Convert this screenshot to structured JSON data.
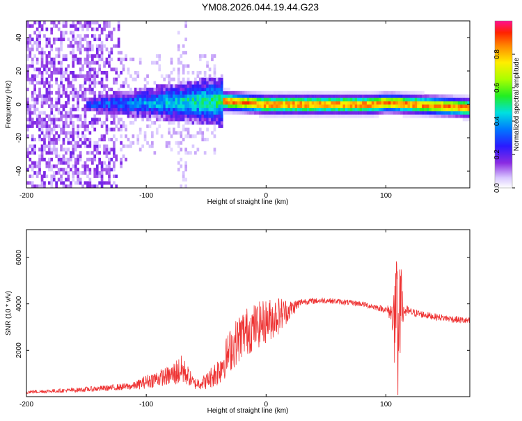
{
  "title": "YM08.2026.044.19.44.G23",
  "chart_data": [
    {
      "type": "heatmap",
      "xlabel": "Height of straight line (km)",
      "ylabel": "Frequency (Hz)",
      "xlim": [
        -200,
        170
      ],
      "ylim": [
        -50,
        50
      ],
      "xticks": [
        -200,
        -100,
        0,
        100
      ],
      "xtick_labels": [
        "-200",
        "-100",
        "0",
        "100"
      ],
      "yticks": [
        -40,
        -20,
        0,
        20,
        40
      ],
      "ytick_labels": [
        "-40",
        "-20",
        "0",
        "20",
        "40"
      ],
      "colorbar": {
        "label": "Normalized spectral amplitude",
        "range": [
          0,
          1
        ],
        "ticks": [
          0.0,
          0.2,
          0.4,
          0.6,
          0.8
        ],
        "tick_labels": [
          "0.0",
          "0.2",
          "0.4",
          "0.6",
          "0.8"
        ]
      },
      "features": {
        "noise_region_km": [
          -200,
          -115
        ],
        "faint_column_km": [
          -75,
          -65
        ],
        "band_start_km": -150,
        "strong_band_start_km": -35,
        "band_center_hz": [
          {
            "x": -150,
            "f": 0
          },
          {
            "x": -35,
            "f": 2
          },
          {
            "x": 0,
            "f": 0
          },
          {
            "x": 90,
            "f": 0
          },
          {
            "x": 100,
            "f": 1
          },
          {
            "x": 170,
            "f": -2
          }
        ]
      }
    },
    {
      "type": "line",
      "xlabel": "Height of straight line (km)",
      "ylabel": "SNR (10 * v/v)",
      "xlim": [
        -200,
        170
      ],
      "ylim": [
        0,
        7200
      ],
      "xticks": [
        -200,
        -100,
        0,
        100
      ],
      "xtick_labels": [
        "-200",
        "-100",
        "0",
        "100"
      ],
      "yticks": [
        2000,
        4000,
        6000
      ],
      "ytick_labels": [
        "2000",
        "4000",
        "6000"
      ],
      "series": [
        {
          "name": "SNR",
          "color": "#ee3333",
          "envelope_x": [
            -200,
            -160,
            -130,
            -110,
            -100,
            -90,
            -80,
            -75,
            -70,
            -65,
            -60,
            -50,
            -40,
            -30,
            -20,
            -10,
            0,
            10,
            20,
            30,
            50,
            80,
            100,
            105,
            108,
            110,
            112,
            115,
            120,
            140,
            170
          ],
          "envelope_y": [
            200,
            280,
            380,
            460,
            650,
            800,
            900,
            1050,
            1150,
            900,
            550,
            650,
            1100,
            2000,
            2700,
            3000,
            3250,
            3500,
            3750,
            4100,
            4150,
            4000,
            3750,
            3600,
            3500,
            3400,
            3600,
            3700,
            3650,
            3450,
            3250
          ],
          "noise_scale": [
            60,
            80,
            110,
            140,
            250,
            300,
            350,
            500,
            550,
            350,
            200,
            280,
            550,
            800,
            900,
            850,
            800,
            700,
            350,
            120,
            100,
            100,
            120,
            400,
            1800,
            2400,
            1500,
            300,
            150,
            120,
            130
          ]
        }
      ]
    }
  ]
}
